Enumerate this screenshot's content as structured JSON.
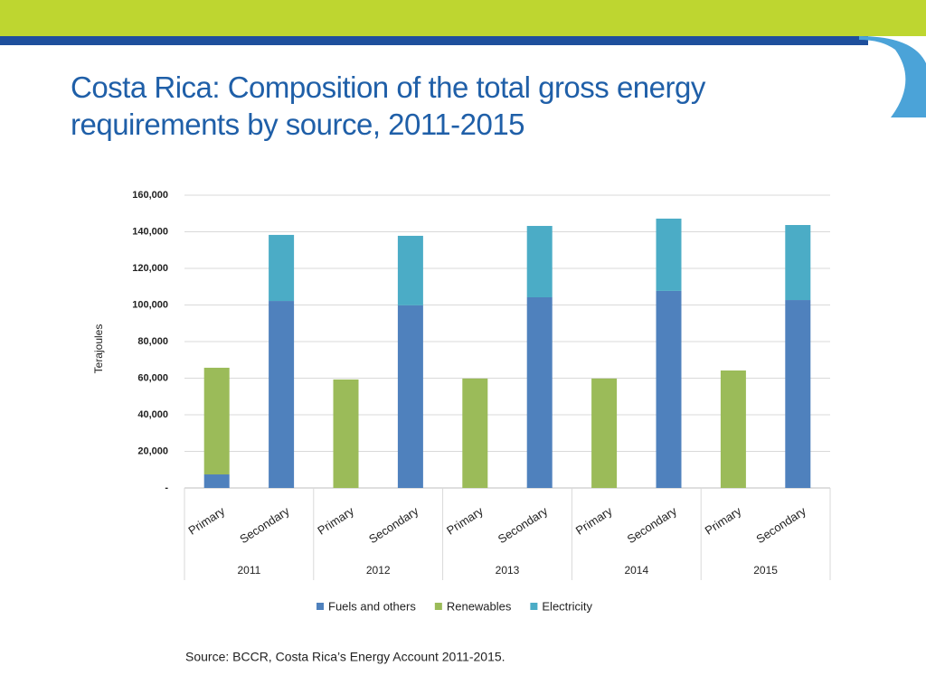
{
  "title": "Costa Rica: Composition of the total gross energy requirements by source, 2011-2015",
  "source": "Source: BCCR, Costa Rica’s Energy Account 2011-2015.",
  "chart_data": {
    "type": "stacked_bar",
    "y_label": "Terajoules",
    "categories": [
      "Primary",
      "Secondary",
      "Primary",
      "Secondary",
      "Primary",
      "Secondary",
      "Primary",
      "Secondary",
      "Primary",
      "Secondary"
    ],
    "groups": [
      "2011",
      "2012",
      "2013",
      "2014",
      "2015"
    ],
    "series": [
      {
        "name": "Fuels and others",
        "color": "#4f81bd",
        "values": [
          7400,
          102200,
          0,
          99800,
          0,
          104200,
          0,
          107700,
          0,
          102700
        ]
      },
      {
        "name": "Renewables",
        "color": "#9bbb59",
        "values": [
          58300,
          0,
          59300,
          0,
          59800,
          0,
          59800,
          0,
          64200,
          0
        ]
      },
      {
        "name": "Electricity",
        "color": "#4bacc6",
        "values": [
          0,
          36100,
          0,
          38000,
          0,
          39000,
          0,
          39500,
          0,
          41000
        ]
      }
    ],
    "ylim": [
      0,
      160000
    ],
    "yticks": [
      {
        "value": 0,
        "label": "-"
      },
      {
        "value": 20000,
        "label": "20,000"
      },
      {
        "value": 40000,
        "label": "40,000"
      },
      {
        "value": 60000,
        "label": "60,000"
      },
      {
        "value": 80000,
        "label": "80,000"
      },
      {
        "value": 100000,
        "label": "100,000"
      },
      {
        "value": 120000,
        "label": "120,000"
      },
      {
        "value": 140000,
        "label": "140,000"
      },
      {
        "value": 160000,
        "label": "160,000"
      }
    ],
    "grid": true
  }
}
